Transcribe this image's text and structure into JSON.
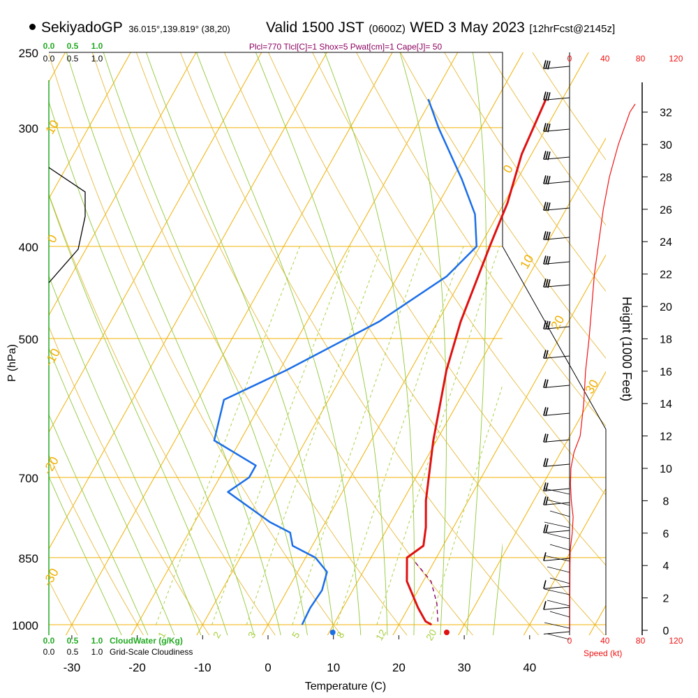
{
  "header": {
    "station": "SekiyadoGP",
    "coords": "36.015°,139.819° (38,20)",
    "valid": "Valid 1500 JST",
    "utc": "(0600Z)",
    "date": "WED 3 May 2023",
    "forecast": "[12hrFcst@2145z]",
    "indices": "Plcl=770 Tlcl[C]=1 Shox=5 Pwat[cm]=1 Cape[J]= 50"
  },
  "colors": {
    "temperature": "#e01010",
    "dewpoint": "#1a6ee8",
    "isotherm": "#f0b000",
    "dry_adiabat": "#e8c050",
    "mixing_ratio": "#a8d040",
    "moist_adiabat": "#90c838",
    "cloud_water": "#22aa22",
    "speed": "#ee1111",
    "parcel": "#880066"
  },
  "chart_data": {
    "type": "line",
    "title": "",
    "xlabel": "Temperature (C)",
    "ylabel": "P (hPa)",
    "xlim": [
      -30,
      45
    ],
    "ylim": [
      1000,
      250
    ],
    "x_ticks": [
      "-30",
      "-20",
      "-10",
      "0",
      "10",
      "20",
      "30",
      "40"
    ],
    "pressure_ticks": [
      "250",
      "300",
      "400",
      "500",
      "700",
      "850",
      "1000"
    ],
    "height_label": "Height (1000 Feet)",
    "height_ticks": [
      "0",
      "2",
      "4",
      "6",
      "8",
      "10",
      "12",
      "14",
      "16",
      "18",
      "20",
      "22",
      "24",
      "26",
      "28",
      "30",
      "32"
    ],
    "speed_label": "Speed (kt)",
    "speed_ticks": [
      "0",
      "40",
      "80",
      "120"
    ],
    "cloud_water_label": "CloudWater (g/Kg)",
    "cloudiness_label": "Grid-Scale Cloudiness",
    "cloud_scale": [
      "0.0",
      "0.5",
      "1.0"
    ],
    "isotherm_labels": [
      "10",
      "0",
      "-10",
      "-20",
      "-30",
      "0",
      "10",
      "20",
      "30"
    ],
    "mixing_ratio_labels": [
      "1",
      "2",
      "3",
      "5",
      "8",
      "12",
      "20"
    ],
    "series": [
      {
        "name": "Temperature",
        "points": [
          [
            -2.5,
            280
          ],
          [
            -1.5,
            320
          ],
          [
            0.5,
            360
          ],
          [
            1.5,
            400
          ],
          [
            3.5,
            480
          ],
          [
            5.5,
            540
          ],
          [
            9.5,
            640
          ],
          [
            13.5,
            740
          ],
          [
            15.8,
            790
          ],
          [
            17,
            826
          ],
          [
            15.5,
            850
          ],
          [
            17.5,
            900
          ],
          [
            21.5,
            960
          ],
          [
            23.8,
            992
          ],
          [
            25,
            1000
          ]
        ]
      },
      {
        "name": "Dewpoint",
        "points": [
          [
            -20.5,
            280
          ],
          [
            -16.5,
            300
          ],
          [
            -8.5,
            340
          ],
          [
            -3.5,
            370
          ],
          [
            -0.5,
            400
          ],
          [
            -2.5,
            430
          ],
          [
            -9,
            480
          ],
          [
            -19,
            540
          ],
          [
            -26,
            580
          ],
          [
            -24,
            640
          ],
          [
            -15.5,
            680
          ],
          [
            -15.5,
            700
          ],
          [
            -17.5,
            725
          ],
          [
            -8.5,
            780
          ],
          [
            -4.5,
            800
          ],
          [
            -3,
            826
          ],
          [
            1.5,
            850
          ],
          [
            4.5,
            880
          ],
          [
            5.3,
            920
          ],
          [
            5,
            960
          ],
          [
            5.2,
            1000
          ]
        ]
      },
      {
        "name": "Parcel",
        "points": [
          [
            17.2,
            860
          ],
          [
            21.2,
            900
          ],
          [
            24,
            950
          ],
          [
            25.8,
            995
          ]
        ]
      },
      {
        "name": "Speed",
        "points": [
          [
            0.2,
            0
          ],
          [
            0.2,
            1
          ],
          [
            0.3,
            2
          ],
          [
            0.4,
            3
          ],
          [
            0.5,
            4
          ],
          [
            0.8,
            5
          ],
          [
            3,
            6
          ],
          [
            4,
            7
          ],
          [
            2,
            8
          ],
          [
            1,
            9
          ],
          [
            1.5,
            10
          ],
          [
            5,
            11
          ],
          [
            12,
            12
          ],
          [
            16,
            14
          ],
          [
            18,
            16
          ],
          [
            22,
            18
          ],
          [
            25,
            20
          ],
          [
            28,
            22
          ],
          [
            33,
            24
          ],
          [
            38,
            26
          ],
          [
            45,
            28
          ],
          [
            55,
            30
          ],
          [
            68,
            32
          ],
          [
            74,
            32.5
          ]
        ]
      }
    ],
    "surface_temperature": 27,
    "surface_dewpoint": 10,
    "lcl_hpa": 770,
    "cape_j": 50
  }
}
